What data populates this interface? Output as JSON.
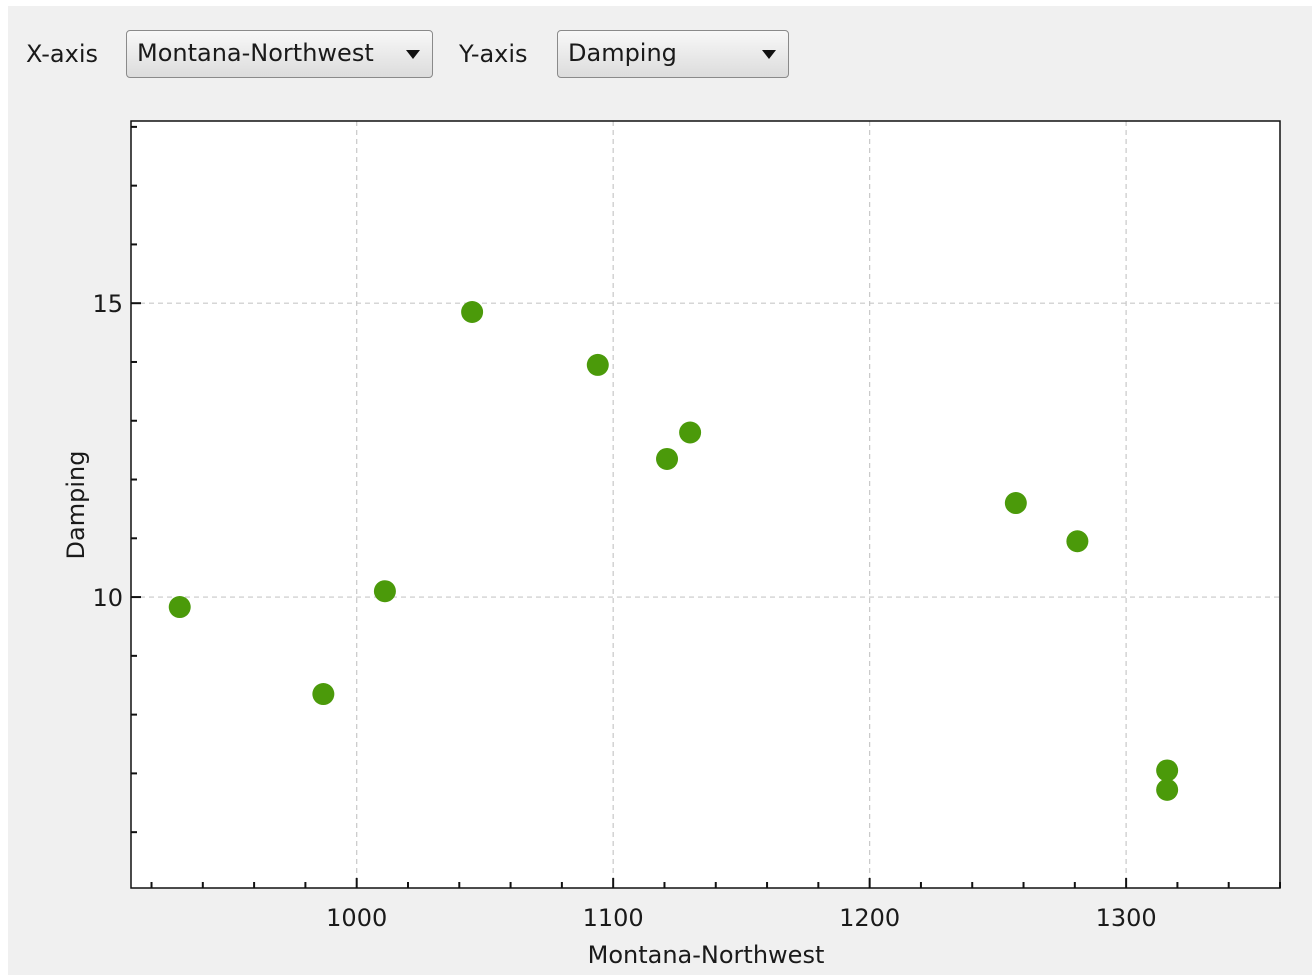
{
  "controls": {
    "x_label": "X-axis",
    "x_value": "Montana-Northwest",
    "y_label": "Y-axis",
    "y_value": "Damping"
  },
  "colors": {
    "point": "#4b9a0a",
    "grid": "#c8c8c8",
    "panel": "#f0f0f0"
  },
  "chart_data": {
    "type": "scatter",
    "xlabel": "Montana-Northwest",
    "ylabel": "Damping",
    "xlim": [
      912,
      1360
    ],
    "ylim": [
      5.05,
      18.1
    ],
    "x_ticks": [
      1000,
      1100,
      1200,
      1300
    ],
    "y_ticks": [
      10,
      15
    ],
    "grid": true,
    "x": [
      931,
      987,
      1011,
      1045,
      1094,
      1121,
      1130,
      1257,
      1281,
      1316,
      1316
    ],
    "y": [
      9.83,
      8.35,
      10.1,
      14.85,
      13.95,
      12.35,
      12.8,
      11.6,
      10.95,
      7.05,
      6.72
    ]
  }
}
